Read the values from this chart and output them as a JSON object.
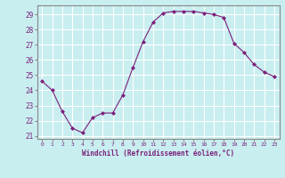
{
  "x": [
    0,
    1,
    2,
    3,
    4,
    5,
    6,
    7,
    8,
    9,
    10,
    11,
    12,
    13,
    14,
    15,
    16,
    17,
    18,
    19,
    20,
    21,
    22,
    23
  ],
  "y": [
    24.6,
    24.0,
    22.6,
    21.5,
    21.2,
    22.2,
    22.5,
    22.5,
    23.7,
    25.5,
    27.2,
    28.5,
    29.1,
    29.2,
    29.2,
    29.2,
    29.1,
    29.0,
    28.8,
    27.1,
    26.5,
    25.7,
    25.2,
    24.9
  ],
  "line_color": "#7B1F7B",
  "marker": "D",
  "marker_size": 2.0,
  "background_color": "#c8eef0",
  "grid_color": "#ffffff",
  "xlabel": "Windchill (Refroidissement éolien,°C)",
  "xlabel_color": "#7B1F7B",
  "tick_color": "#7B1F7B",
  "ylim": [
    20.8,
    29.6
  ],
  "xlim": [
    -0.5,
    23.5
  ],
  "yticks": [
    21,
    22,
    23,
    24,
    25,
    26,
    27,
    28,
    29
  ],
  "xticks": [
    0,
    1,
    2,
    3,
    4,
    5,
    6,
    7,
    8,
    9,
    10,
    11,
    12,
    13,
    14,
    15,
    16,
    17,
    18,
    19,
    20,
    21,
    22,
    23
  ],
  "xtick_labels": [
    "0",
    "1",
    "2",
    "3",
    "4",
    "5",
    "6",
    "7",
    "8",
    "9",
    "10",
    "11",
    "12",
    "13",
    "14",
    "15",
    "16",
    "17",
    "18",
    "19",
    "20",
    "21",
    "22",
    "23"
  ]
}
